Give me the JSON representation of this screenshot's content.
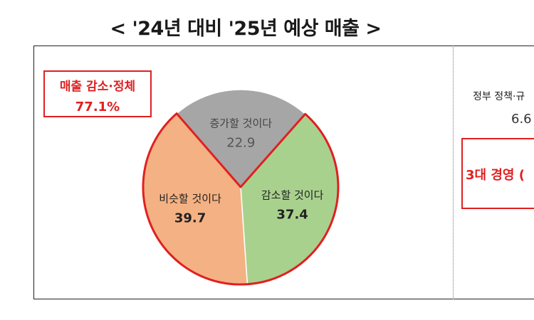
{
  "title": "< '24년 대비 '25년 예상 매출 >",
  "callout": {
    "line1": "매출 감소·정체",
    "line2": "77.1%",
    "color": "#e02020"
  },
  "right_panel": {
    "policy_label": "정부 정책·규",
    "policy_value": "6.6",
    "box_label": "3대 경영 ("
  },
  "chart_data": {
    "type": "pie",
    "slices": [
      {
        "label": "증가할 것이다",
        "value": 22.9,
        "color": "#a6a6a6",
        "label_color": "#444444",
        "value_color": "#555555",
        "bold": false
      },
      {
        "label": "감소할 것이다",
        "value": 37.4,
        "color": "#a9d18e",
        "label_color": "#222222",
        "value_color": "#222222",
        "bold": true
      },
      {
        "label": "비슷할 것이다",
        "value": 39.7,
        "color": "#f4b183",
        "label_color": "#222222",
        "value_color": "#222222",
        "bold": true
      }
    ],
    "highlight_outline_color": "#e02020"
  }
}
